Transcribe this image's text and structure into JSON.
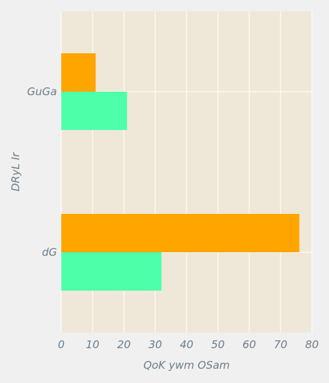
{
  "chart_data": {
    "type": "bar",
    "orientation": "horizontal",
    "categories": [
      "GuGa",
      "dG"
    ],
    "series": [
      {
        "values": [
          11,
          76
        ],
        "color": "#ffa500"
      },
      {
        "values": [
          21,
          32
        ],
        "color": "#4dffa8"
      }
    ],
    "xlabel": "QoK ywm OSam",
    "ylabel": "DRyL Ir",
    "xlim": [
      0,
      80
    ],
    "xticks": [
      0,
      10,
      20,
      30,
      40,
      50,
      60,
      70,
      80
    ],
    "grid": true,
    "legend": "none"
  },
  "colors": {
    "plot_background": "#efe8d8",
    "figure_background": "#f0f0f0",
    "grid": "#ffffff",
    "text": "#6b7d8c"
  }
}
